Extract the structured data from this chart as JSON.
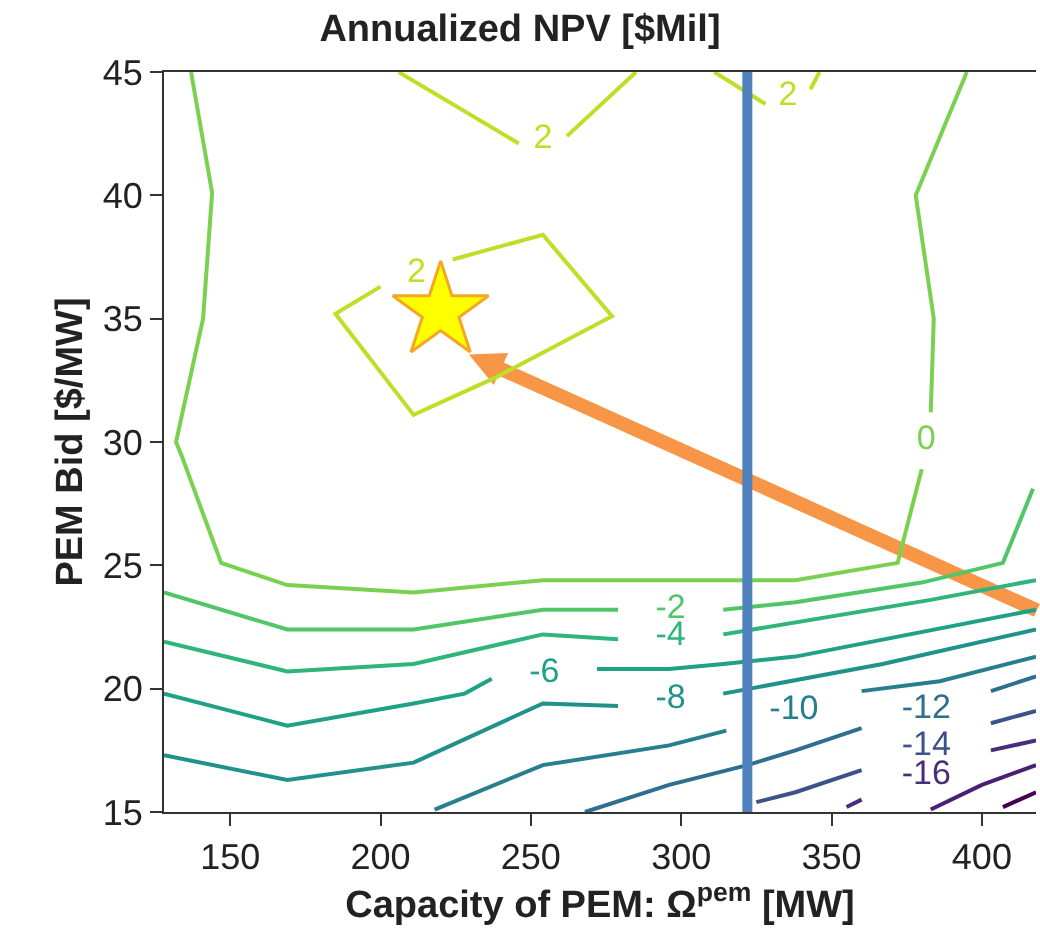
{
  "chart_data": {
    "type": "line",
    "title": "Annualized NPV [$Mil]",
    "xlabel": "Capacity of PEM: Ω$^{pem}$ [MW]",
    "ylabel": "PEM Bid [$/MW]",
    "xlim": [
      128,
      418
    ],
    "ylim": [
      15,
      45
    ],
    "xticks": [
      150,
      200,
      250,
      300,
      350,
      400
    ],
    "yticks": [
      15,
      20,
      25,
      30,
      35,
      40,
      45
    ],
    "grid": false,
    "legend": false,
    "line_style": "solid",
    "marker": "none",
    "series": [
      {
        "name": "2",
        "color": "#bddf26",
        "x": [
          206,
          246,
          254,
          262,
          285
        ],
        "values": [
          45,
          42.1,
          null,
          42.4,
          45
        ]
      },
      {
        "name": "2",
        "color": "#bddf26",
        "x": [
          311,
          328,
          336,
          343,
          346
        ],
        "values": [
          45,
          43.7,
          null,
          44.3,
          45
        ]
      },
      {
        "name": "2",
        "color": "#bddf26",
        "x": [
          200,
          212,
          224,
          254,
          277,
          238,
          211,
          185,
          200
        ],
        "values": [
          36.3,
          null,
          37.4,
          38.4,
          35.1,
          32.6,
          31.1,
          35.2,
          36.3
        ]
      },
      {
        "name": "0",
        "color": "#7ad151",
        "x": [
          137,
          144,
          141,
          132,
          134,
          147,
          169,
          211,
          254,
          321,
          338,
          372,
          380,
          381,
          383,
          384,
          378,
          395
        ],
        "values": [
          45,
          40.1,
          35.0,
          30.0,
          29.4,
          25.1,
          24.2,
          23.9,
          24.4,
          24.4,
          24.4,
          25.1,
          28.9,
          null,
          31.2,
          35.0,
          40.0,
          45
        ]
      },
      {
        "name": "-2",
        "color": "#52c569",
        "x": [
          128,
          169,
          211,
          254,
          279,
          296,
          314,
          338,
          380,
          407,
          417
        ],
        "values": [
          23.9,
          22.4,
          22.4,
          23.2,
          23.2,
          null,
          23.2,
          23.5,
          24.3,
          25.1,
          28.1
        ]
      },
      {
        "name": "-4",
        "color": "#2fb47c",
        "x": [
          128,
          169,
          211,
          254,
          279,
          296,
          314,
          383,
          418
        ],
        "values": [
          21.9,
          20.7,
          21.0,
          22.2,
          22.0,
          null,
          22.2,
          23.6,
          24.4
        ]
      },
      {
        "name": "-6",
        "color": "#1fa187",
        "x": [
          128,
          169,
          211,
          228,
          237,
          254,
          272,
          296,
          314,
          338,
          418
        ],
        "values": [
          19.8,
          18.5,
          19.4,
          19.8,
          20.4,
          null,
          20.8,
          20.8,
          21.0,
          21.3,
          23.2
        ]
      },
      {
        "name": "-8",
        "color": "#21918c",
        "x": [
          128,
          169,
          211,
          254,
          279,
          296,
          314,
          367,
          418
        ],
        "values": [
          17.3,
          16.3,
          17.0,
          19.4,
          19.3,
          null,
          19.8,
          21.0,
          22.4
        ]
      },
      {
        "name": "-10",
        "color": "#277f8e",
        "x": [
          218,
          254,
          296,
          315,
          338,
          360,
          386,
          418
        ],
        "values": [
          15.1,
          16.9,
          17.7,
          18.3,
          null,
          19.9,
          20.3,
          21.3
        ]
      },
      {
        "name": "-12",
        "color": "#2e6e8e",
        "x": [
          268,
          296,
          322,
          338,
          360,
          380,
          403,
          418
        ],
        "values": [
          15.0,
          16.1,
          16.9,
          17.5,
          18.4,
          null,
          19.9,
          20.5
        ]
      },
      {
        "name": "-14",
        "color": "#3b528b",
        "x": [
          325,
          338,
          360,
          380,
          403,
          418
        ],
        "values": [
          15.4,
          15.8,
          16.7,
          null,
          18.6,
          19.1
        ]
      },
      {
        "name": "-16",
        "color": "#472d7b",
        "x": [
          355,
          360,
          383,
          403,
          418
        ],
        "values": [
          15.2,
          15.5,
          null,
          17.5,
          17.9
        ]
      },
      {
        "color": "#482173",
        "x": [
          383,
          400,
          418
        ],
        "values": [
          15.1,
          16.1,
          16.9
        ]
      },
      {
        "color": "#440154",
        "x": [
          407,
          418
        ],
        "values": [
          15.2,
          15.8
        ]
      },
      {
        "type": "scatter",
        "marker": "star",
        "color": "#ffff00",
        "x": [
          220
        ],
        "values": [
          35.3
        ]
      }
    ],
    "ref_lines": [
      {
        "axis": "x",
        "value": 322,
        "color": "#4f81bd"
      }
    ]
  }
}
